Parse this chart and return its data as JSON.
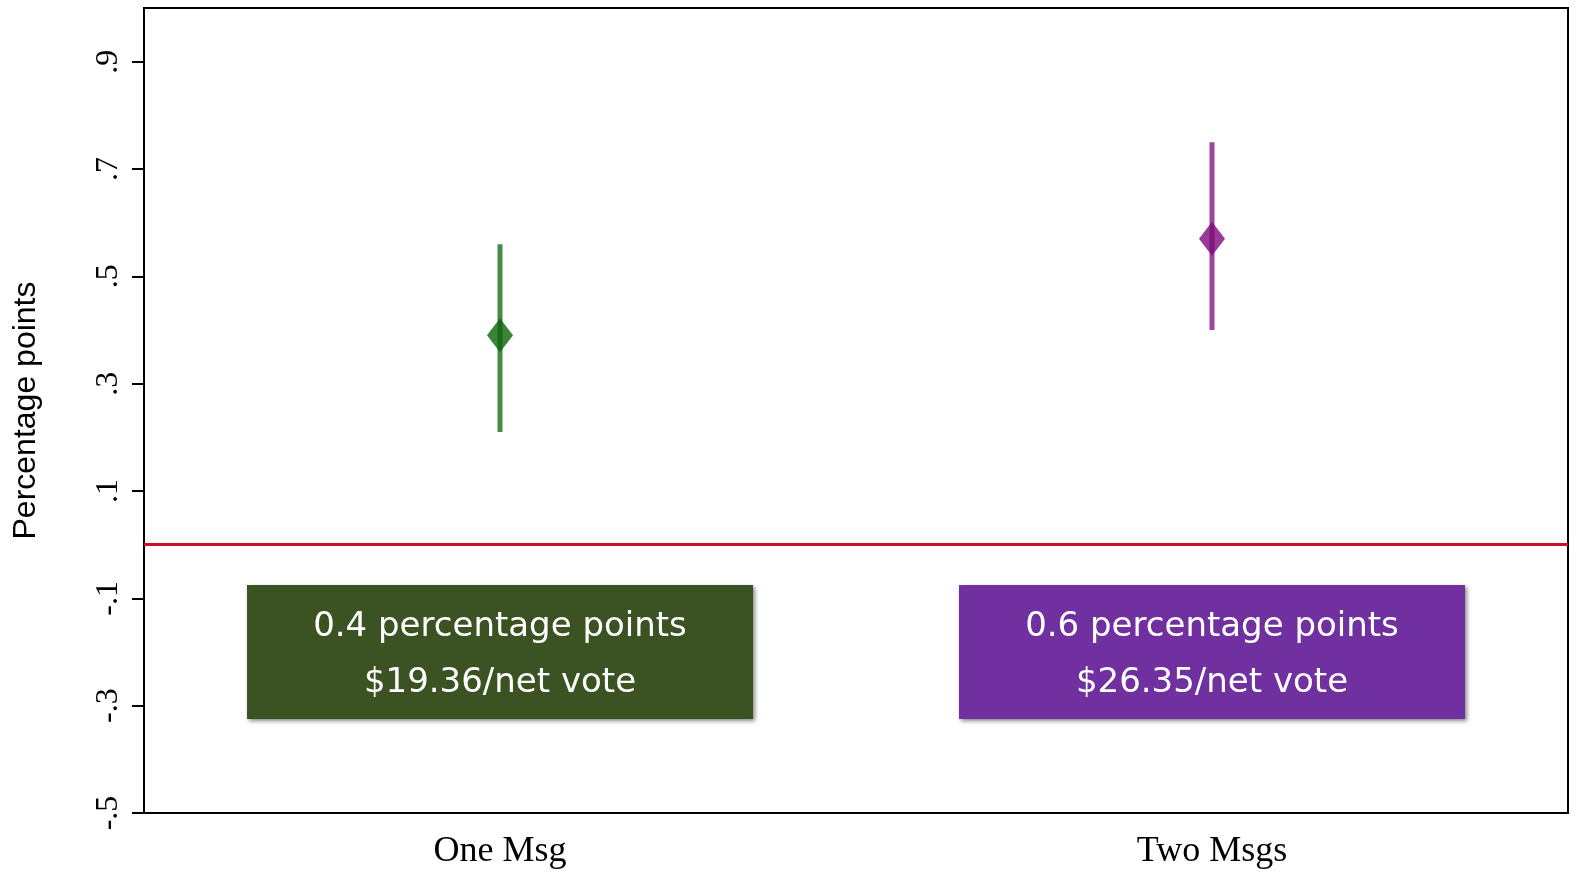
{
  "chart_data": {
    "type": "scatter",
    "ylabel": "Percentage points",
    "categories": [
      "One Msg",
      "Two Msgs"
    ],
    "values": [
      0.39,
      0.57
    ],
    "colors": [
      "#0a640a",
      "#7d0a7d"
    ],
    "errors": [
      [
        0.21,
        0.56
      ],
      [
        0.4,
        0.75
      ]
    ],
    "marker": "diamond",
    "ylim": [
      -0.5,
      1.0
    ],
    "yticks": [
      {
        "value": -0.5,
        "label": "-.5"
      },
      {
        "value": -0.3,
        "label": "-.3"
      },
      {
        "value": -0.1,
        "label": "-.1"
      },
      {
        "value": 0.1,
        "label": ".1"
      },
      {
        "value": 0.3,
        "label": ".3"
      },
      {
        "value": 0.5,
        "label": ".5"
      },
      {
        "value": 0.7,
        "label": ".7"
      },
      {
        "value": 0.9,
        "label": ".9"
      }
    ],
    "ref_lines": [
      {
        "axis": "y",
        "value": 0,
        "color": "#c8102e"
      }
    ],
    "annotations": [
      "0.4 percentage points\n$19.36/net vote",
      "0.6 percentage points\n$26.35/net vote"
    ],
    "grid": false
  }
}
